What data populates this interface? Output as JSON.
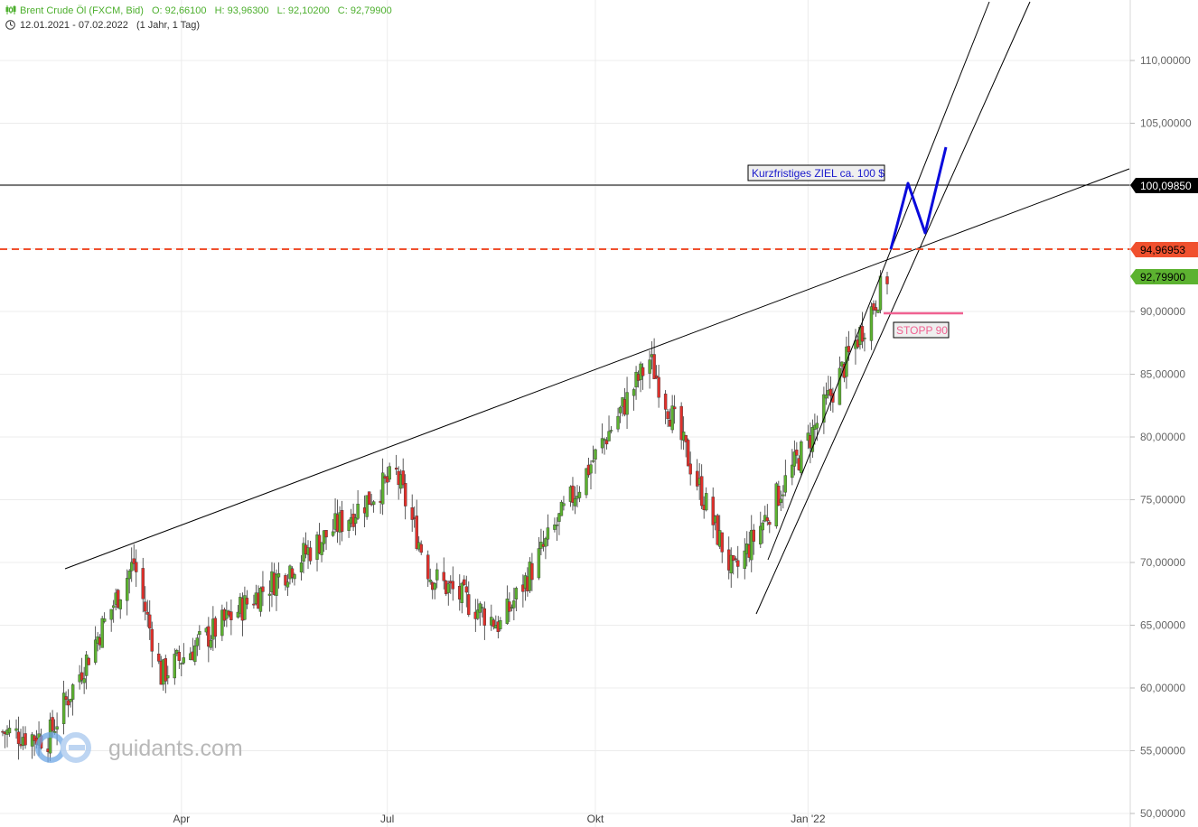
{
  "header": {
    "instrument": "Brent Crude Öl (FXCM, Bid)",
    "open": "O: 92,66100",
    "high": "H: 93,96300",
    "low": "L: 92,10200",
    "close": "C: 92,79900",
    "range": "12.01.2021 - 07.02.2022",
    "period": "(1 Jahr, 1 Tag)",
    "chart_icon": "candlestick-icon",
    "clock_icon": "clock-icon"
  },
  "watermark": {
    "text": "guidants.com",
    "icon": "guidants-logo-icon"
  },
  "colors": {
    "up": "#5cb230",
    "down": "#e0302b",
    "target_line": "#000000",
    "dashed_level": "#f0502e",
    "stop_line": "#f06292",
    "target_arrow": "#0a0adc",
    "last_price": "#5cb230",
    "grid": "#ececec"
  },
  "chart_data": {
    "type": "candlestick",
    "title": "Brent Crude Öl (FXCM, Bid)",
    "xlabel": "",
    "ylabel": "",
    "ylim": [
      50,
      115
    ],
    "grid": true,
    "x_ticks": [
      "Apr",
      "Jul",
      "Okt",
      "Jan '22"
    ],
    "y_ticks": [
      "50,00000",
      "55,00000",
      "60,00000",
      "65,00000",
      "70,00000",
      "75,00000",
      "80,00000",
      "85,00000",
      "90,00000",
      "95,00000",
      "100,00000",
      "105,00000",
      "110,00000"
    ],
    "y_tick_values": [
      50,
      55,
      60,
      65,
      70,
      75,
      80,
      85,
      90,
      95,
      100,
      105,
      110
    ],
    "price_tags": [
      {
        "label": "100,09850",
        "value": 100.0985,
        "kind": "target"
      },
      {
        "label": "94,96953",
        "value": 94.96953,
        "kind": "level"
      },
      {
        "label": "92,79900",
        "value": 92.799,
        "kind": "last"
      }
    ],
    "annotations": [
      {
        "text": "Kurzfristiges ZIEL ca. 100 $",
        "kind": "target-label"
      },
      {
        "text": "STOPP 90",
        "kind": "stop-label"
      }
    ],
    "stop_level": 90,
    "key_points": [
      {
        "date": "2021-01-12",
        "close": 56.5
      },
      {
        "date": "2021-02-01",
        "close": 56.0
      },
      {
        "date": "2021-03-11",
        "close": 70.0
      },
      {
        "date": "2021-03-23",
        "close": 61.0
      },
      {
        "date": "2021-05-18",
        "close": 69.5
      },
      {
        "date": "2021-07-05",
        "close": 77.0
      },
      {
        "date": "2021-07-20",
        "close": 69.0
      },
      {
        "date": "2021-08-20",
        "close": 65.0
      },
      {
        "date": "2021-10-25",
        "close": 86.2
      },
      {
        "date": "2021-12-01",
        "close": 69.0
      },
      {
        "date": "2022-01-04",
        "close": 80.0
      },
      {
        "date": "2022-02-07",
        "close": 92.8
      }
    ]
  }
}
